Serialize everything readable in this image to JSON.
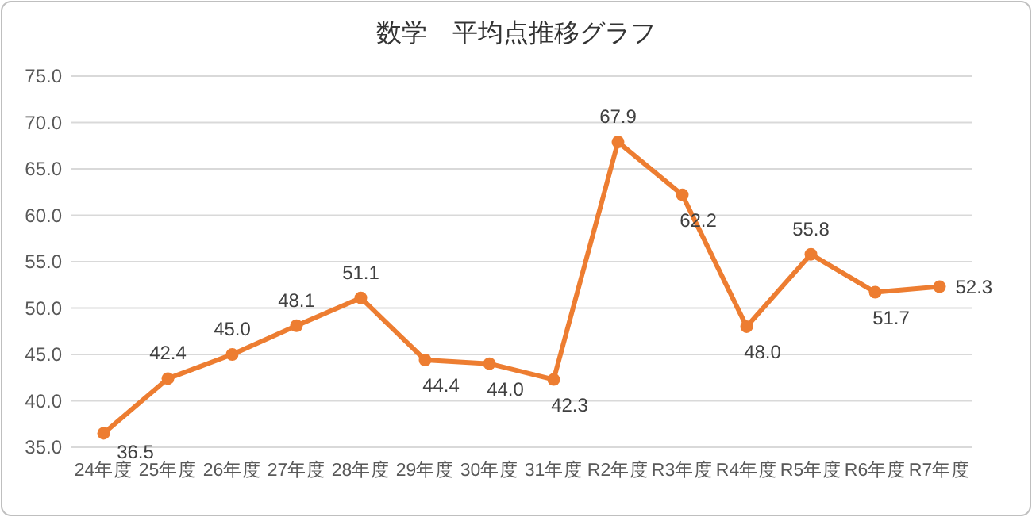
{
  "chart_data": {
    "type": "line",
    "title": "数学　平均点推移グラフ",
    "categories": [
      "24年度",
      "25年度",
      "26年度",
      "27年度",
      "28年度",
      "29年度",
      "30年度",
      "31年度",
      "R2年度",
      "R3年度",
      "R4年度",
      "R5年度",
      "R6年度",
      "R7年度"
    ],
    "series": [
      {
        "color": "#ed7d31",
        "values": [
          36.5,
          42.4,
          45.0,
          48.1,
          51.1,
          44.4,
          44.0,
          42.3,
          67.9,
          62.2,
          48.0,
          55.8,
          51.7,
          52.3
        ],
        "value_labels": [
          "36.5",
          "42.4",
          "45.0",
          "48.1",
          "51.1",
          "44.4",
          "44.0",
          "42.3",
          "67.9",
          "62.2",
          "48.0",
          "55.8",
          "51.7",
          "52.3"
        ]
      }
    ],
    "ylim": [
      35,
      75
    ],
    "yticks": [
      {
        "value": 35,
        "label": "35.0"
      },
      {
        "value": 40,
        "label": "40.0"
      },
      {
        "value": 45,
        "label": "45.0"
      },
      {
        "value": 50,
        "label": "50.0"
      },
      {
        "value": 55,
        "label": "55.0"
      },
      {
        "value": 60,
        "label": "60.0"
      },
      {
        "value": 65,
        "label": "65.0"
      },
      {
        "value": 70,
        "label": "70.0"
      },
      {
        "value": 75,
        "label": "75.0"
      }
    ],
    "grid": "y",
    "marker": "circle",
    "line_style": "solid"
  }
}
